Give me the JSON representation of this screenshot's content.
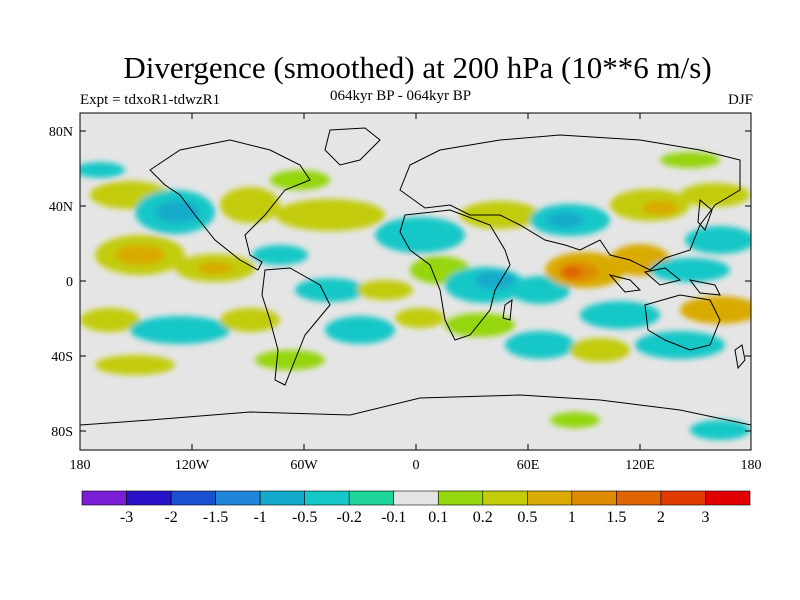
{
  "title": "Divergence (smoothed) at 200 hPa (10**6 m/s)",
  "experiment": "Expt = tdxoR1-tdwzR1",
  "subtitle": "064kyr BP - 064kyr BP",
  "season": "DJF",
  "y_axis_labels": [
    "80N",
    "40N",
    "0",
    "40S",
    "80S"
  ],
  "x_axis_labels": [
    "180",
    "120W",
    "60W",
    "0",
    "60E",
    "120E",
    "180"
  ],
  "colorbar": {
    "labels": [
      "-3",
      "-2",
      "-1.5",
      "-1",
      "-0.5",
      "-0.2",
      "-0.1",
      "0.1",
      "0.2",
      "0.5",
      "1",
      "1.5",
      "2",
      "3"
    ],
    "colors": [
      "#7a1fd6",
      "#2a12c8",
      "#1a4fd0",
      "#1f86d9",
      "#13aacb",
      "#16c7c7",
      "#1fd49a",
      "#e5e5e5",
      "#95d60e",
      "#c2cc07",
      "#d9ab04",
      "#de8a03",
      "#e06402",
      "#e03a02",
      "#e00000"
    ]
  },
  "map_colors": {
    "background": "#e5e5e5",
    "coast": "#000000"
  }
}
